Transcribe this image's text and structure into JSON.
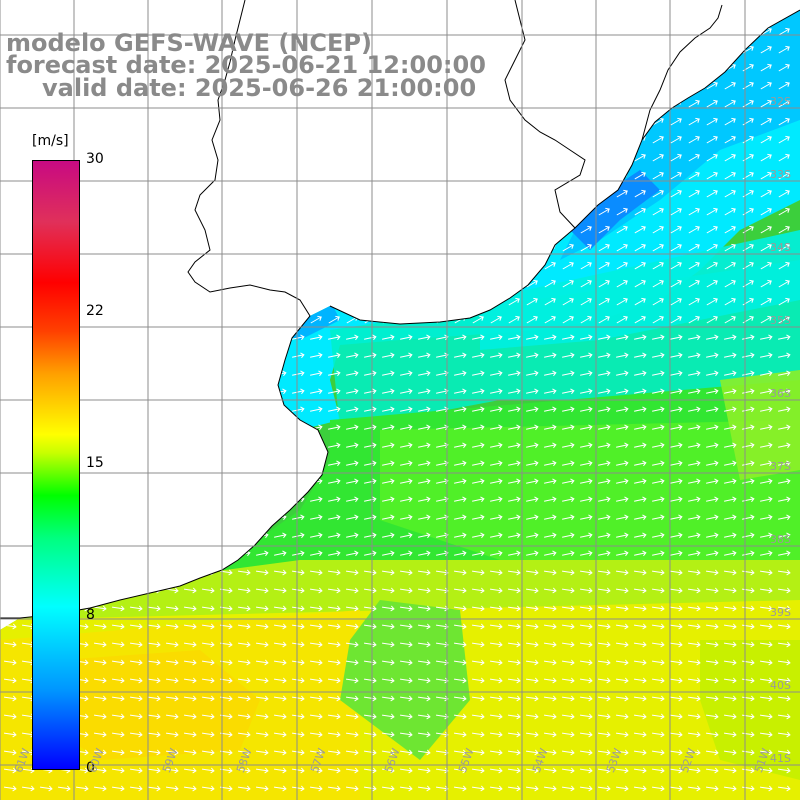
{
  "titles": {
    "model": "modelo GEFS-WAVE (NCEP)",
    "forecast": "forecast date: 2025-06-21 12:00:00",
    "valid": "valid date: 2025-06-26 21:00:00"
  },
  "colorbar": {
    "unit": "[m/s]",
    "ticks": [
      "30",
      "22",
      "15",
      "8",
      "0"
    ],
    "min": 0,
    "max": 30
  },
  "lat_labels": [
    "32S",
    "33S",
    "34S",
    "35S",
    "36S",
    "37S",
    "38S",
    "39S",
    "40S",
    "41S"
  ],
  "lon_labels": [
    "61W",
    "60W",
    "59W",
    "58W",
    "57W",
    "56W",
    "55W",
    "54W",
    "53W",
    "52W",
    "51W"
  ],
  "colors": {
    "land": "#ffffff",
    "grid": "#8c8c8c",
    "coast": "#000000",
    "arrow": "#ffffff",
    "title": "#8a8a8a"
  }
}
